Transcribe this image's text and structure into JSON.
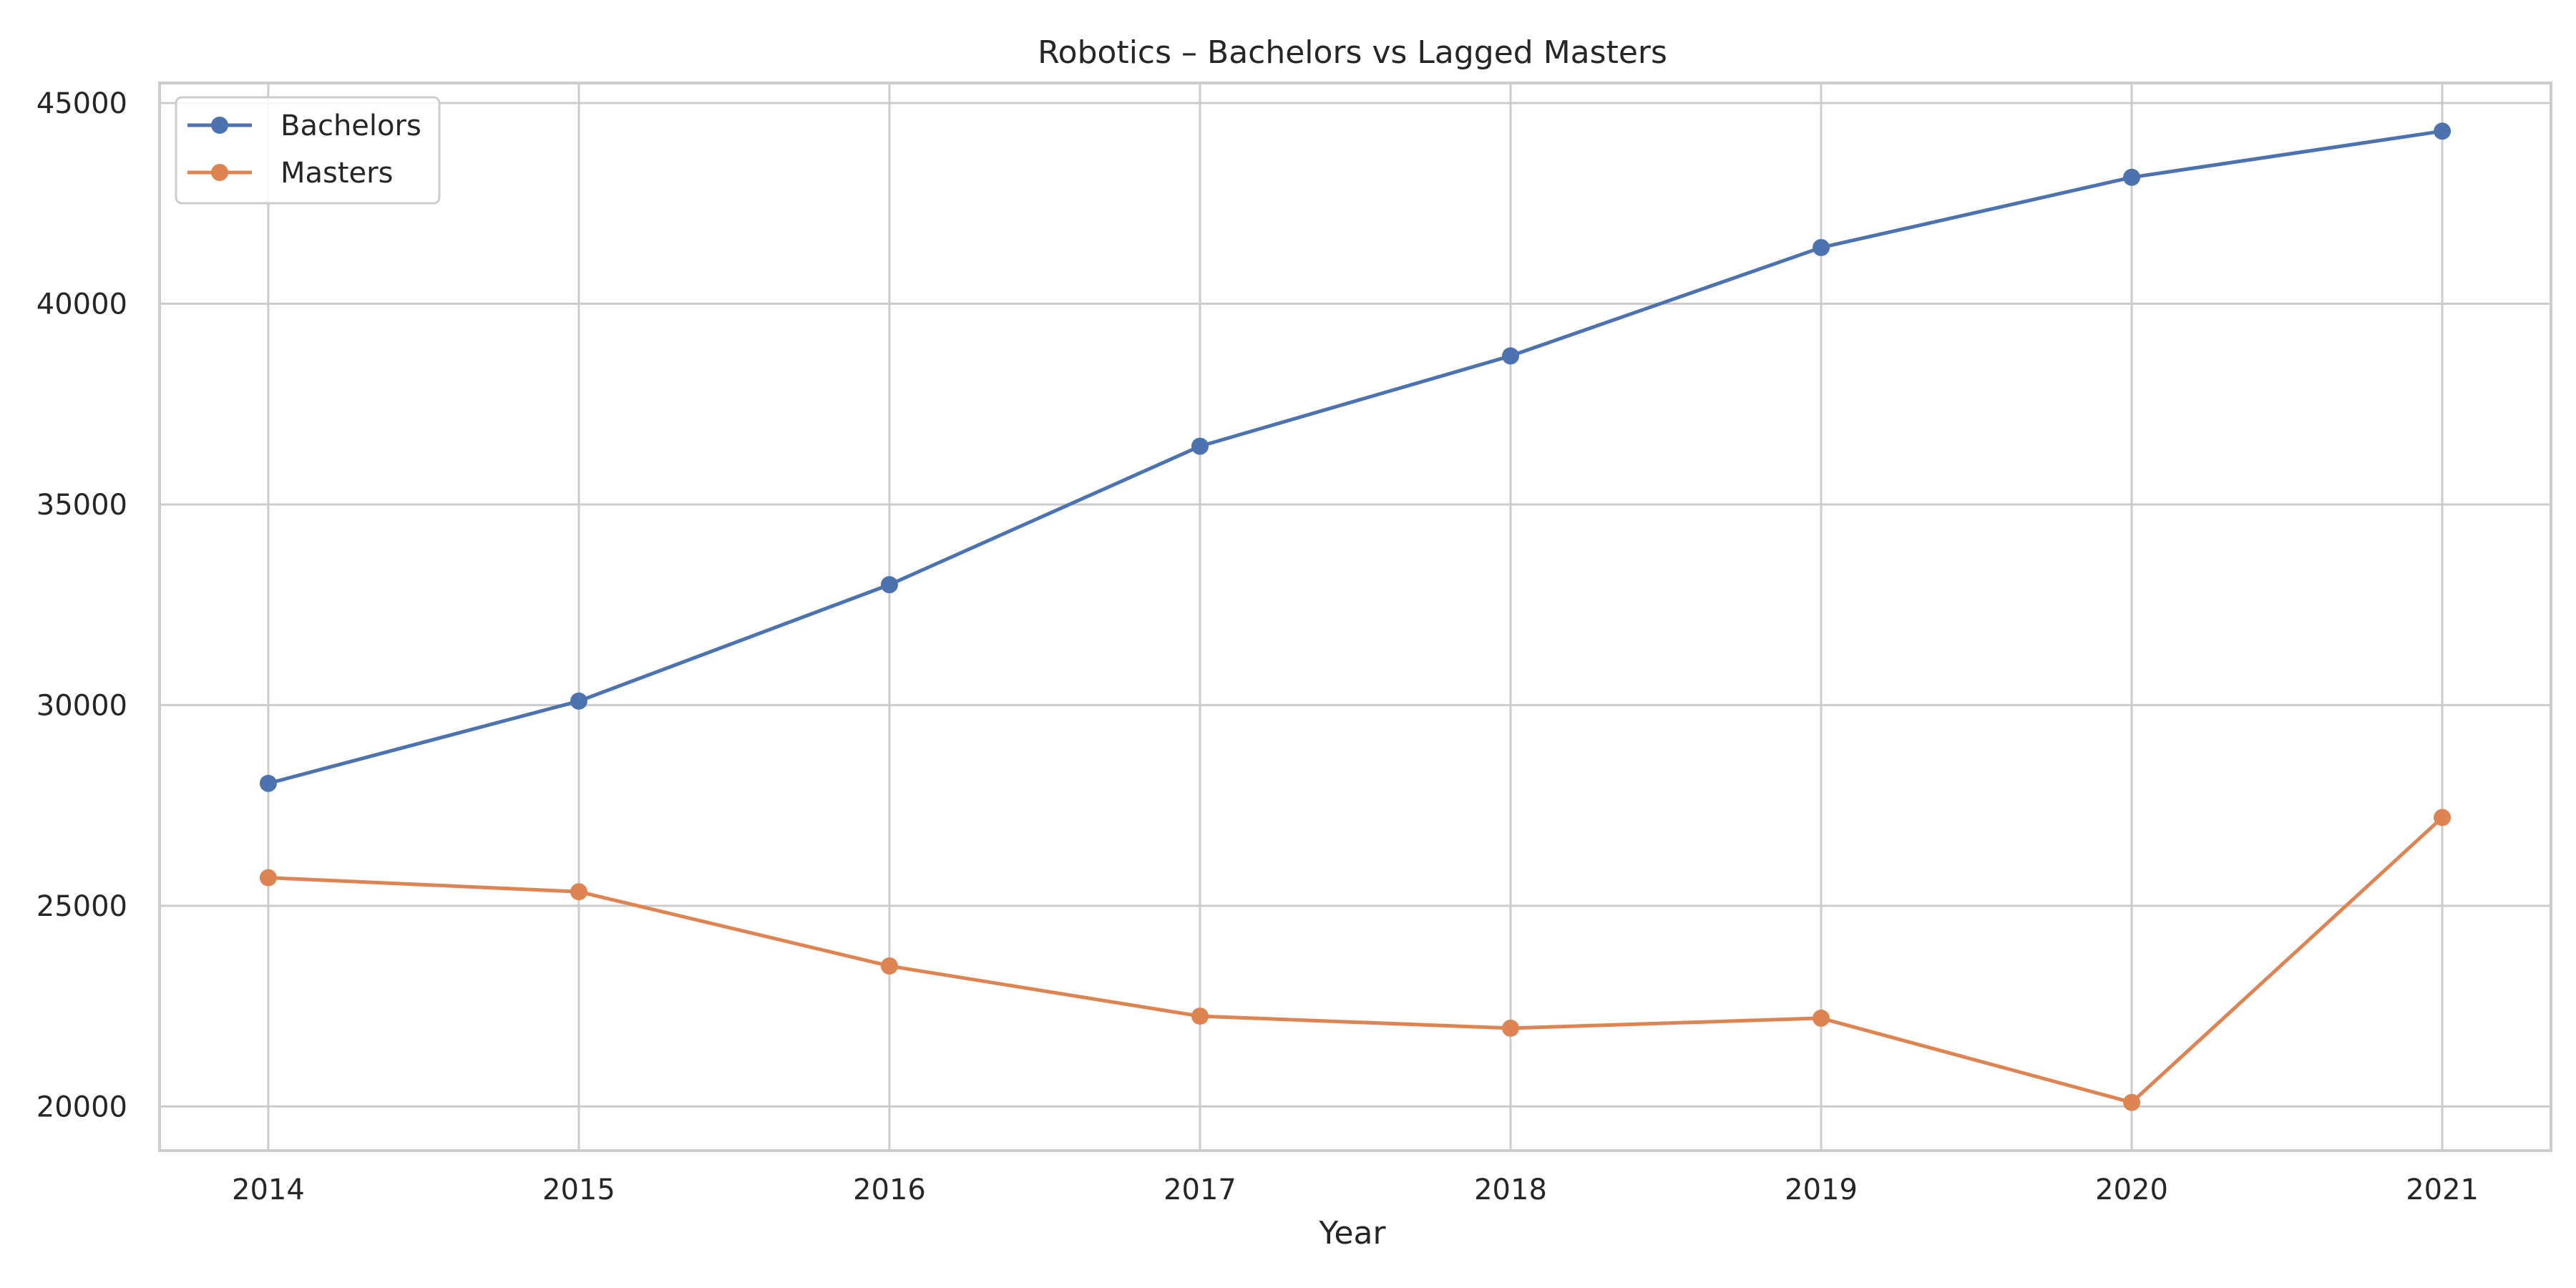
{
  "chart_data": {
    "type": "line",
    "title": "Robotics – Bachelors vs Lagged Masters",
    "xlabel": "Year",
    "ylabel": "",
    "x": [
      "2014",
      "2015",
      "2016",
      "2017",
      "2018",
      "2019",
      "2020",
      "2021"
    ],
    "xlim": [
      2013.65,
      2021.35
    ],
    "ylim": [
      18900,
      45500
    ],
    "yticks": [
      20000,
      25000,
      30000,
      35000,
      40000,
      45000
    ],
    "grid": true,
    "legend_position": "upper-left",
    "series": [
      {
        "name": "Bachelors",
        "color": "#4c72b0",
        "values": [
          28050,
          30100,
          33000,
          36450,
          38700,
          41400,
          43150,
          44300
        ]
      },
      {
        "name": "Masters",
        "color": "#dd8452",
        "values": [
          25700,
          25350,
          23500,
          22250,
          21950,
          22200,
          20100,
          27200
        ]
      }
    ]
  }
}
